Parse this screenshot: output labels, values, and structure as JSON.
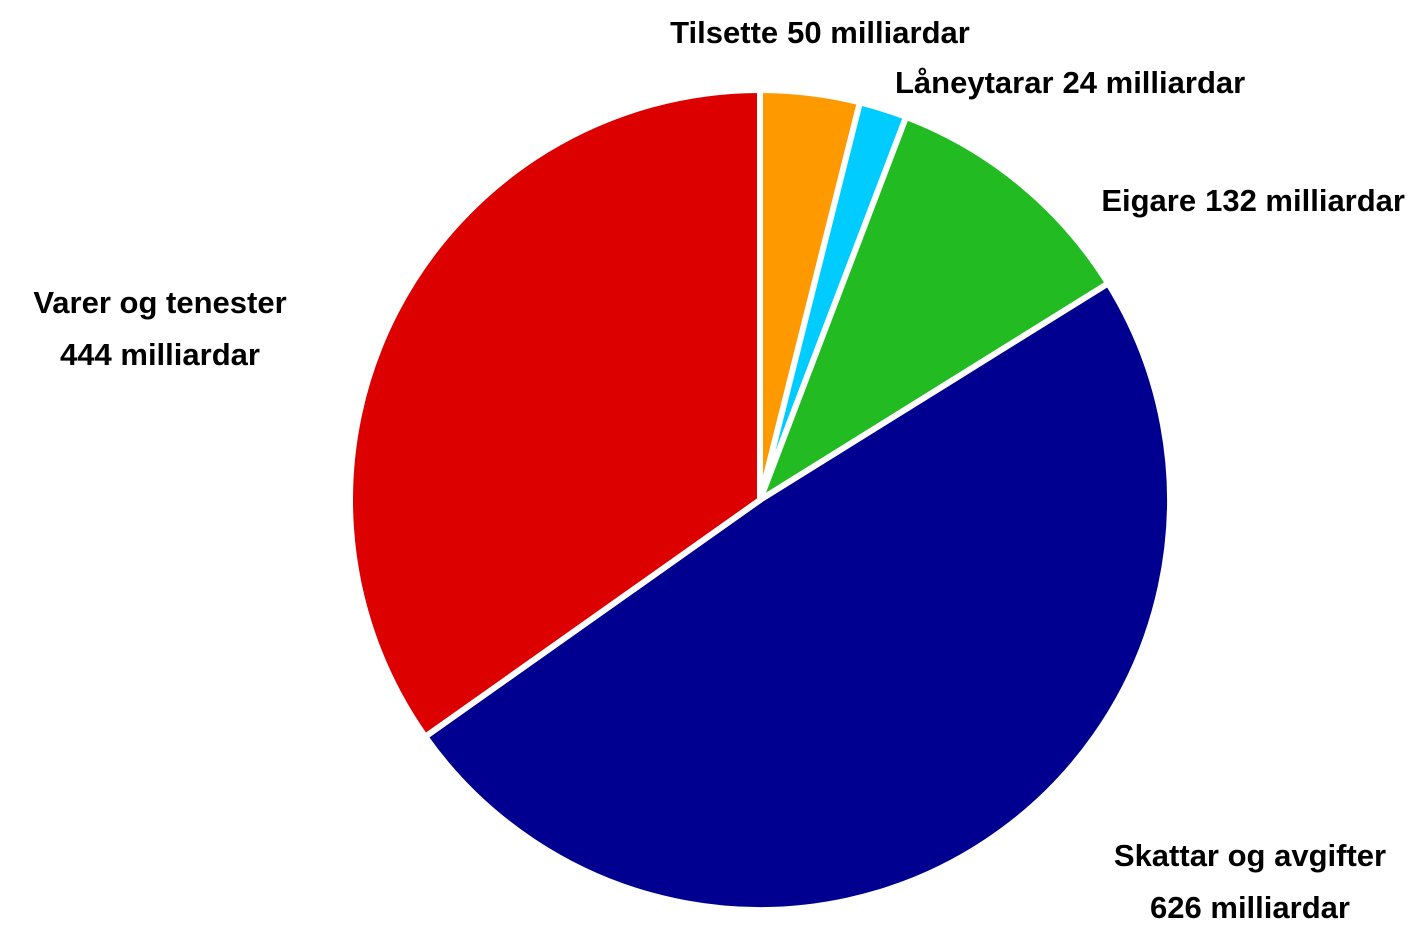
{
  "chart_data": {
    "type": "pie",
    "categories": [
      "Tilsette",
      "Låneytarar",
      "Eigare",
      "Skattar og avgifter",
      "Varer og tenester"
    ],
    "values": [
      50,
      24,
      132,
      626,
      444
    ],
    "value_labels": [
      "50 milliardar",
      "24 milliardar",
      "132 milliardar",
      "626 milliardar",
      "444 milliardar"
    ],
    "colors": [
      "#ff9900",
      "#00ccff",
      "#22bb22",
      "#000090",
      "#dd0000"
    ]
  }
}
